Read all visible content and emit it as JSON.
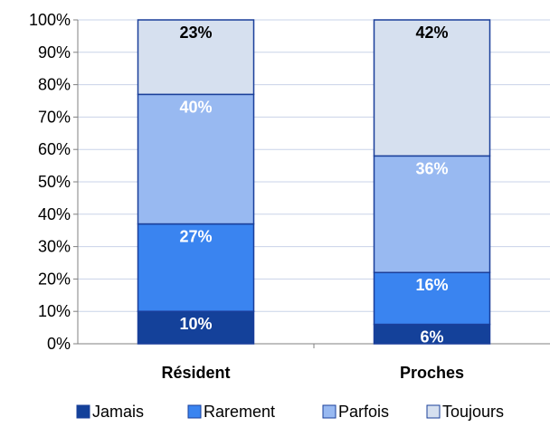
{
  "chart_data": {
    "type": "bar",
    "stacked": true,
    "percent": true,
    "categories": [
      "Résident",
      "Proches"
    ],
    "series": [
      {
        "name": "Jamais",
        "values": [
          10,
          6
        ],
        "labels": [
          "10%",
          "6%"
        ],
        "color": "#14419a",
        "label_color": "#ffffff"
      },
      {
        "name": "Rarement",
        "values": [
          27,
          16
        ],
        "labels": [
          "27%",
          "16%"
        ],
        "color": "#3a84f0",
        "label_color": "#ffffff"
      },
      {
        "name": "Parfois",
        "values": [
          40,
          36
        ],
        "labels": [
          "40%",
          "36%"
        ],
        "color": "#98b9f1",
        "label_color": "#ffffff"
      },
      {
        "name": "Toujours",
        "values": [
          23,
          42
        ],
        "labels": [
          "23%",
          "42%"
        ],
        "color": "#d6e0ef",
        "label_color": "#000000"
      }
    ],
    "ylim": [
      0,
      100
    ],
    "y_ticks": [
      "0%",
      "10%",
      "20%",
      "30%",
      "40%",
      "50%",
      "60%",
      "70%",
      "80%",
      "90%",
      "100%"
    ],
    "grid": true,
    "legend_position": "bottom",
    "bar_border_color": "#1a3f9a"
  }
}
